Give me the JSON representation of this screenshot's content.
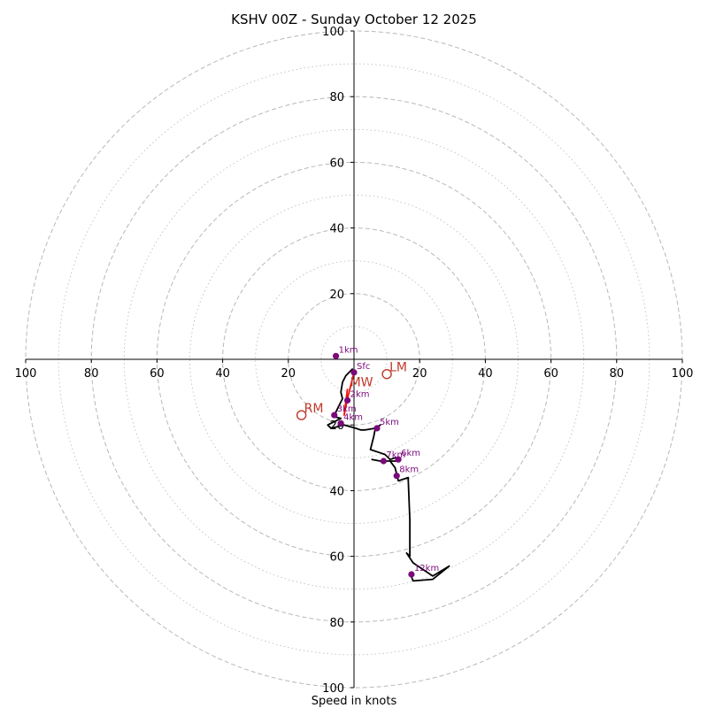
{
  "chart_data": {
    "type": "hodograph",
    "title": "KSHV 00Z - Sunday October 12 2025",
    "xlabel": "Speed in knots",
    "range": [
      -100,
      100
    ],
    "x_ticks": [
      {
        "value": -100,
        "label": "100"
      },
      {
        "value": -80,
        "label": "80"
      },
      {
        "value": -60,
        "label": "60"
      },
      {
        "value": -40,
        "label": "40"
      },
      {
        "value": -20,
        "label": "20"
      },
      {
        "value": 20,
        "label": "20"
      },
      {
        "value": 40,
        "label": "40"
      },
      {
        "value": 60,
        "label": "60"
      },
      {
        "value": 80,
        "label": "80"
      },
      {
        "value": 100,
        "label": "100"
      }
    ],
    "y_ticks": [
      {
        "value": 100,
        "label": "100"
      },
      {
        "value": 80,
        "label": "80"
      },
      {
        "value": 60,
        "label": "60"
      },
      {
        "value": 40,
        "label": "40"
      },
      {
        "value": 20,
        "label": "20"
      },
      {
        "value": -20,
        "label": "20"
      },
      {
        "value": -40,
        "label": "40"
      },
      {
        "value": -60,
        "label": "60"
      },
      {
        "value": -80,
        "label": "80"
      },
      {
        "value": -100,
        "label": "100"
      }
    ],
    "rings_major": [
      20,
      40,
      60,
      80,
      100
    ],
    "rings_minor": [
      10,
      30,
      50,
      70,
      90
    ],
    "profile": [
      [
        0,
        -4
      ],
      [
        -0.5,
        -3
      ],
      [
        -2.5,
        -5
      ],
      [
        -3.5,
        -7
      ],
      [
        -4,
        -10
      ],
      [
        -3.5,
        -12
      ],
      [
        -4.5,
        -14
      ],
      [
        -5.5,
        -16
      ],
      [
        -6,
        -17.5
      ],
      [
        -4,
        -18
      ],
      [
        -8,
        -20
      ],
      [
        -7,
        -21
      ],
      [
        -5,
        -20.5
      ],
      [
        -3,
        -20
      ],
      [
        0.5,
        -21
      ],
      [
        2,
        -21.5
      ],
      [
        3.5,
        -21.5
      ],
      [
        6.5,
        -21
      ],
      [
        8,
        -20
      ],
      [
        6.5,
        -21
      ],
      [
        6,
        -23.5
      ],
      [
        5,
        -27.5
      ],
      [
        8,
        -28.5
      ],
      [
        9.5,
        -29
      ],
      [
        11,
        -30.5
      ],
      [
        12.5,
        -30
      ],
      [
        13.5,
        -31
      ],
      [
        8,
        -31
      ],
      [
        5.5,
        -30.5
      ],
      [
        8,
        -31
      ],
      [
        11,
        -31
      ],
      [
        12.5,
        -33
      ],
      [
        13.5,
        -37
      ],
      [
        16.5,
        -36
      ],
      [
        17,
        -49
      ],
      [
        17,
        -60
      ],
      [
        16,
        -59
      ],
      [
        18,
        -62
      ],
      [
        24,
        -66
      ],
      [
        29,
        -63
      ],
      [
        24,
        -67
      ],
      [
        18,
        -67.5
      ],
      [
        17,
        -65
      ]
    ],
    "profile_red": [
      [
        0,
        -4
      ],
      [
        -1,
        -8
      ],
      [
        -2,
        -12
      ],
      [
        -3,
        -17
      ],
      [
        -2,
        -9
      ]
    ],
    "levels": [
      {
        "label": "Sfc",
        "u": 0,
        "v": -4
      },
      {
        "label": "1km",
        "u": -5.5,
        "v": 1
      },
      {
        "label": "2km",
        "u": -2,
        "v": -12.5
      },
      {
        "label": "3km",
        "u": -6,
        "v": -17
      },
      {
        "label": "4km",
        "u": -4,
        "v": -19.5
      },
      {
        "label": "5km",
        "u": 7,
        "v": -21
      },
      {
        "label": "6km",
        "u": 13.5,
        "v": -30.5
      },
      {
        "label": "7km",
        "u": 9,
        "v": -31
      },
      {
        "label": "8km",
        "u": 13,
        "v": -35.5
      },
      {
        "label": "12km",
        "u": 17.5,
        "v": -65.5
      }
    ],
    "motions": [
      {
        "label": "LM",
        "u": 10,
        "v": -4.5
      },
      {
        "label": "MW",
        "u": -2,
        "v": -9
      },
      {
        "label": "RM",
        "u": -16,
        "v": -17
      }
    ]
  },
  "colors": {
    "profile": "#000000",
    "profile_red": "#e8150c",
    "level_marker": "#7a0a7a",
    "motion": "#c0392b",
    "ring": "#b8b8b8",
    "axis": "#000000"
  }
}
